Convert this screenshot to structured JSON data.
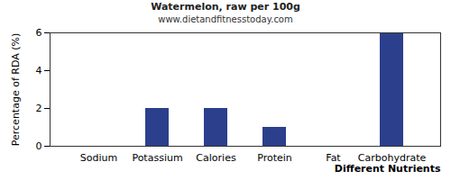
{
  "chart_data": {
    "type": "bar",
    "title": "Watermelon, raw per 100g",
    "subtitle": "www.dietandfitnesstoday.com",
    "x_label": "Different Nutrients",
    "y_label": "Percentage of RDA (%)",
    "categories": [
      "Sodium",
      "Potassium",
      "Calories",
      "Protein",
      "Fat",
      "Carbohydrate"
    ],
    "values": [
      0,
      2,
      2,
      1,
      0,
      6
    ],
    "color": "#2b3f8c",
    "ylim": [
      0,
      6
    ],
    "yticks": [
      0,
      2,
      4,
      6
    ],
    "grid": false
  }
}
